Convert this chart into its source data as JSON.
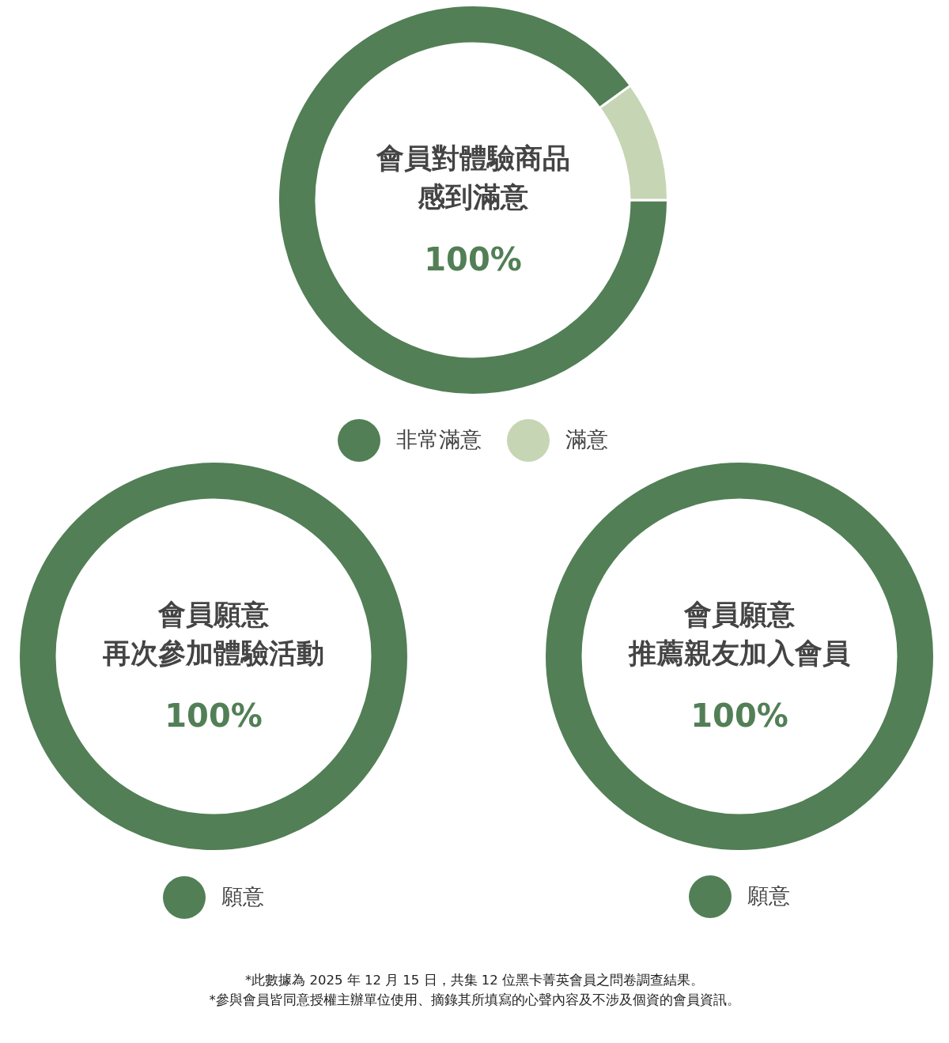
{
  "chart_data": [
    {
      "type": "donut",
      "title": "會員對體驗商品",
      "subtitle": "感到滿意",
      "categories": [
        "非常滿意",
        "滿意"
      ],
      "values": [
        90,
        10
      ],
      "colors": [
        "#527f56",
        "#c6d5b3"
      ],
      "annotations": [
        "100%"
      ],
      "legend": "bottom"
    },
    {
      "type": "donut",
      "title": "會員願意",
      "subtitle": "再次參加體驗活動",
      "categories": [
        "願意"
      ],
      "values": [
        100
      ],
      "colors": [
        "#527f56"
      ],
      "annotations": [
        "100%"
      ],
      "legend": "bottom"
    },
    {
      "type": "donut",
      "title": "會員願意",
      "subtitle": "推薦親友加入會員",
      "categories": [
        "願意"
      ],
      "values": [
        100
      ],
      "colors": [
        "#527f56"
      ],
      "annotations": [
        "100%"
      ],
      "legend": "bottom"
    },
    {
      "type": "other",
      "annotations": [
        "*此數據為 2025 年 12 月 15 日，共集 12 位黑卡菁英會員之問卷調查結果。",
        "*參與會員皆同意授權主辦單位使用、摘錄其所填寫的心聲內容及不涉及個資的會員資訊。"
      ]
    }
  ]
}
